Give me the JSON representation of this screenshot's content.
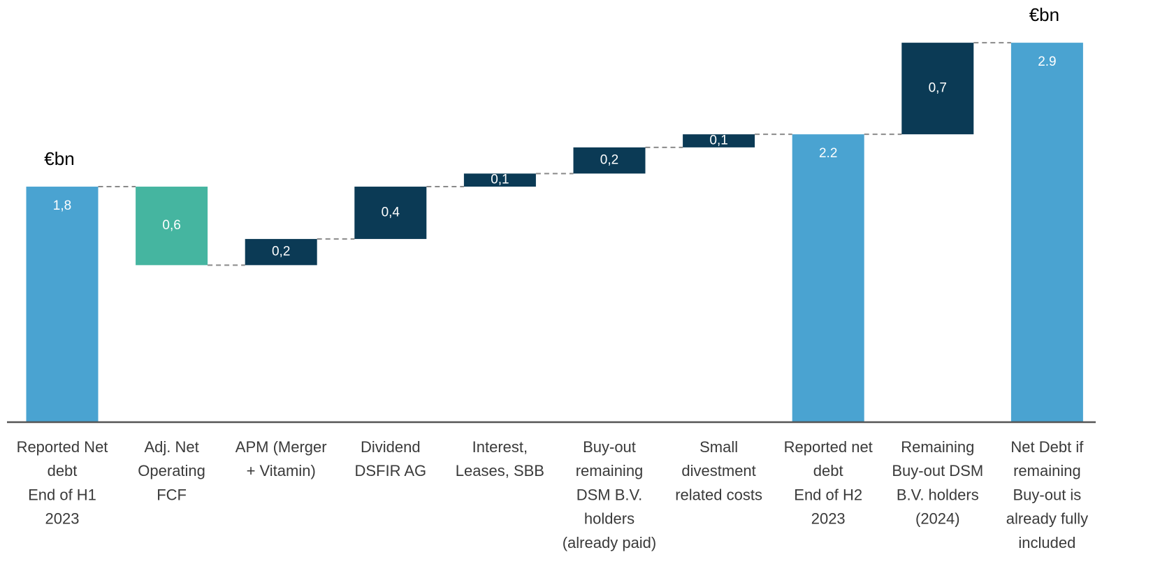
{
  "chart_data": {
    "type": "waterfall",
    "unit_labels": [
      "€bn",
      "€bn"
    ],
    "categories": [
      [
        "Reported Net",
        "debt",
        "End of H1",
        "2023"
      ],
      [
        "Adj. Net",
        "Operating",
        "FCF"
      ],
      [
        "APM (Merger",
        "+ Vitamin)"
      ],
      [
        "Dividend",
        "DSFIR AG"
      ],
      [
        "Interest,",
        "Leases, SBB"
      ],
      [
        "Buy-out",
        "remaining",
        "DSM B.V.",
        "holders",
        "(already paid)"
      ],
      [
        "Small",
        "divestment",
        "related costs"
      ],
      [
        "Reported net",
        "debt",
        "End of H2",
        "2023"
      ],
      [
        "Remaining",
        "Buy-out DSM",
        "B.V. holders",
        "(2024)"
      ],
      [
        "Net Debt if",
        "remaining",
        "Buy-out is",
        "already fully",
        "included"
      ]
    ],
    "values": [
      1.8,
      0.6,
      0.2,
      0.4,
      0.1,
      0.2,
      0.1,
      2.2,
      0.7,
      2.9
    ],
    "value_labels": [
      "1,8",
      "0,6",
      "0,2",
      "0,4",
      "0,1",
      "0,2",
      "0,1",
      "2.2",
      "0,7",
      "2.9"
    ],
    "kinds": [
      "total",
      "decrease",
      "increase",
      "increase",
      "increase",
      "increase",
      "increase",
      "total",
      "increase",
      "total"
    ],
    "colors": {
      "total": "#4aa3d1",
      "decrease": "#45b5a0",
      "increase": "#0b3a55"
    },
    "connector_color": "#8a8a8a",
    "axis_color": "#555555"
  }
}
